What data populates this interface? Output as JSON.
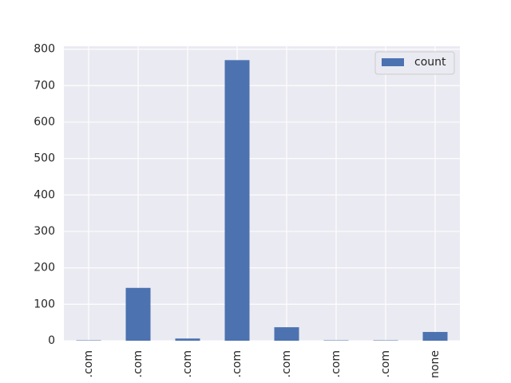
{
  "chart_data": {
    "type": "bar",
    "categories": [
      ".com",
      ".com",
      ".com",
      ".com",
      ".com",
      ".com",
      ".com",
      "none"
    ],
    "series": [
      {
        "name": "count",
        "values": [
          1,
          145,
          6,
          770,
          37,
          1,
          1,
          24
        ],
        "color": "#4c72b0"
      }
    ],
    "title": "",
    "xlabel": "",
    "ylabel": "",
    "ylim": [
      0,
      808
    ],
    "yticks": [
      0,
      100,
      200,
      300,
      400,
      500,
      600,
      700,
      800
    ],
    "grid": true,
    "legend_position": "top-right",
    "colors": {
      "background": "#eaeaf2",
      "grid": "#ffffff",
      "bar": "#4c72b0"
    }
  }
}
